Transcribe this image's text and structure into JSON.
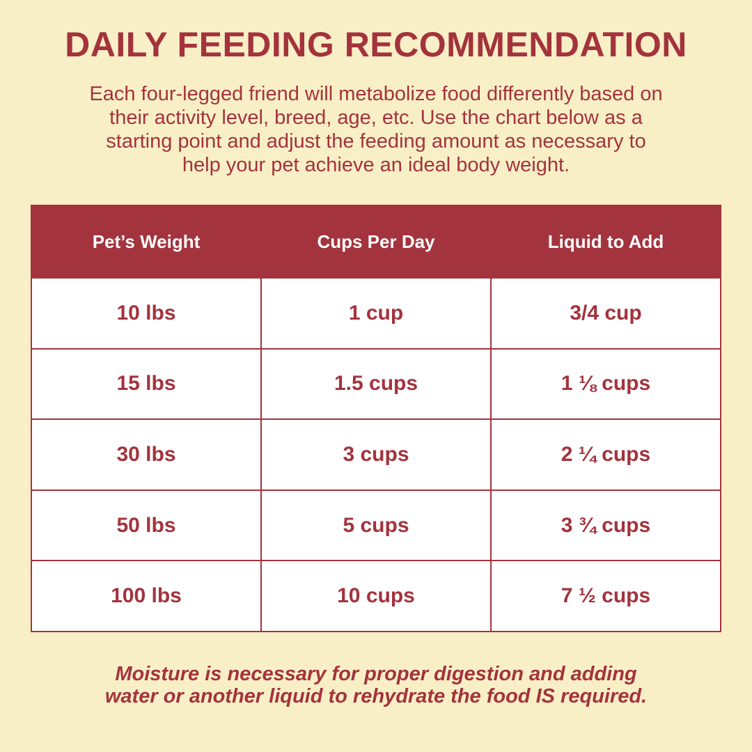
{
  "title": "DAILY FEEDING RECOMMENDATION",
  "intro_lines": [
    "Each four-legged friend will metabolize food differently based on",
    "their activity level, breed, age, etc. Use the chart below as a",
    "starting point and adjust the feeding amount as necessary to",
    "help your pet achieve an ideal body weight."
  ],
  "table": {
    "headers": [
      "Pet’s Weight",
      "Cups Per Day",
      "Liquid to Add"
    ],
    "rows": [
      [
        "10 lbs",
        "1 cup",
        "3/4 cup"
      ],
      [
        "15 lbs",
        "1.5 cups",
        "1 ⅛ cups"
      ],
      [
        "30 lbs",
        "3 cups",
        "2 ¼ cups"
      ],
      [
        "50 lbs",
        "5 cups",
        "3 ¾ cups"
      ],
      [
        "100 lbs",
        "10 cups",
        "7 ½ cups"
      ]
    ]
  },
  "footnote_lines": [
    "Moisture is necessary for proper digestion and adding",
    "water or another liquid to rehydrate the food IS required."
  ],
  "colors": {
    "background": "#f9efc6",
    "accent": "#a3333d",
    "cell_background": "#ffffff"
  }
}
